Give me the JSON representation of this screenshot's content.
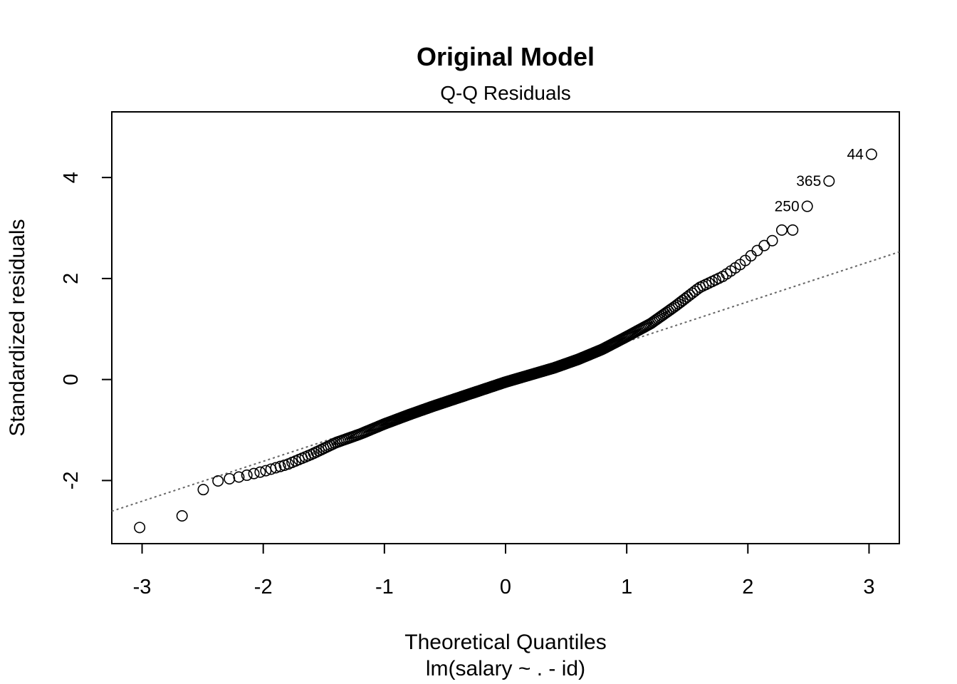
{
  "chart_data": {
    "type": "scatter",
    "title": "Original Model",
    "subtitle": "Q-Q Residuals",
    "xlabel": "Theoretical Quantiles",
    "xlabel_sub": "lm(salary ~ . - id)",
    "ylabel": "Standardized residuals",
    "xlim": [
      -3.25,
      3.25
    ],
    "ylim": [
      -3.25,
      5.3
    ],
    "xticks": [
      -3,
      -2,
      -1,
      0,
      1,
      2,
      3
    ],
    "yticks": [
      -2,
      0,
      2,
      4
    ],
    "reference_line": {
      "slope": 0.79,
      "intercept": -0.04,
      "style": "dotted",
      "color": "#666666"
    },
    "curve_knots": [
      [
        -2.48,
        -2.18
      ],
      [
        -2.4,
        -2.02
      ],
      [
        -2.2,
        -1.93
      ],
      [
        -2.0,
        -1.82
      ],
      [
        -1.8,
        -1.68
      ],
      [
        -1.6,
        -1.48
      ],
      [
        -1.4,
        -1.25
      ],
      [
        -1.2,
        -1.08
      ],
      [
        -1.0,
        -0.88
      ],
      [
        -0.8,
        -0.7
      ],
      [
        -0.6,
        -0.53
      ],
      [
        -0.4,
        -0.37
      ],
      [
        -0.2,
        -0.21
      ],
      [
        0.0,
        -0.05
      ],
      [
        0.2,
        0.09
      ],
      [
        0.4,
        0.23
      ],
      [
        0.6,
        0.4
      ],
      [
        0.8,
        0.6
      ],
      [
        1.0,
        0.85
      ],
      [
        1.2,
        1.11
      ],
      [
        1.4,
        1.45
      ],
      [
        1.6,
        1.82
      ],
      [
        1.8,
        2.05
      ],
      [
        1.95,
        2.3
      ],
      [
        2.1,
        2.6
      ],
      [
        2.2,
        2.75
      ]
    ],
    "extreme_points": [
      {
        "x": -3.02,
        "y": -2.93
      },
      {
        "x": -2.67,
        "y": -2.7
      },
      {
        "x": 2.28,
        "y": 2.96
      },
      {
        "x": 2.37,
        "y": 2.96
      },
      {
        "x": 2.49,
        "y": 3.43,
        "label": "250"
      },
      {
        "x": 2.67,
        "y": 3.93,
        "label": "365"
      },
      {
        "x": 3.02,
        "y": 4.46,
        "label": "44"
      }
    ],
    "n_points": 397,
    "marker": "open-circle",
    "marker_color": "#000000"
  }
}
